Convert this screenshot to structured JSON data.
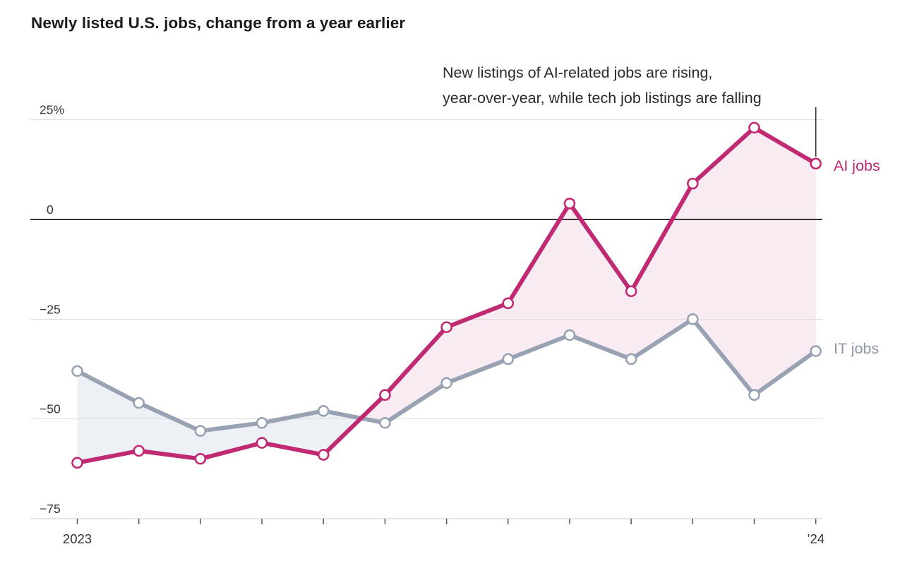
{
  "title": "Newly listed U.S. jobs, change from a year earlier",
  "annotation": {
    "line1": "New listings of AI-related jobs are rising,",
    "line2": "year-over-year, while tech job listings are falling"
  },
  "chart_data": {
    "type": "line",
    "title": "Newly listed U.S. jobs, change from a year earlier",
    "subtitle_annotation": "New listings of AI-related jobs are rising, year-over-year, while tech job listings are falling",
    "n_points": 13,
    "x_axis": {
      "labels": [
        {
          "text": "2023",
          "index": 0
        },
        {
          "text": "’24",
          "index": 12
        }
      ]
    },
    "y_axis": {
      "unit": "%",
      "range": [
        -75,
        25
      ],
      "ticks": [
        {
          "value": 25,
          "label": "25%"
        },
        {
          "value": 0,
          "label": "0"
        },
        {
          "value": -25,
          "label": "−25"
        },
        {
          "value": -50,
          "label": "−50"
        },
        {
          "value": -75,
          "label": "−75"
        }
      ]
    },
    "series": [
      {
        "name": "AI jobs",
        "color": "#c02a72",
        "fill": "#f8ebf2",
        "values": [
          -61,
          -58,
          -60,
          -56,
          -59,
          -44,
          -27,
          -21,
          4,
          -18,
          9,
          23,
          14
        ]
      },
      {
        "name": "IT jobs",
        "color": "#99a2b3",
        "label_color": "#8d96a9",
        "fill": "#edf1f6",
        "values": [
          -38,
          -46,
          -53,
          -51,
          -48,
          -51,
          -41,
          -35,
          -29,
          -35,
          -25,
          -44,
          -33
        ]
      }
    ],
    "legend_position": "right-of-last-point",
    "grid": true
  },
  "colors": {
    "background": "#ffffff",
    "gridline": "#dcdcdc",
    "zero_line": "#1a1a1a",
    "axis_baseline": "#c9c9c9",
    "axis_tick": "#555555",
    "axis_text": "#333333",
    "annotation_pointer": "#333333",
    "marker_fill": "#ffffff"
  }
}
